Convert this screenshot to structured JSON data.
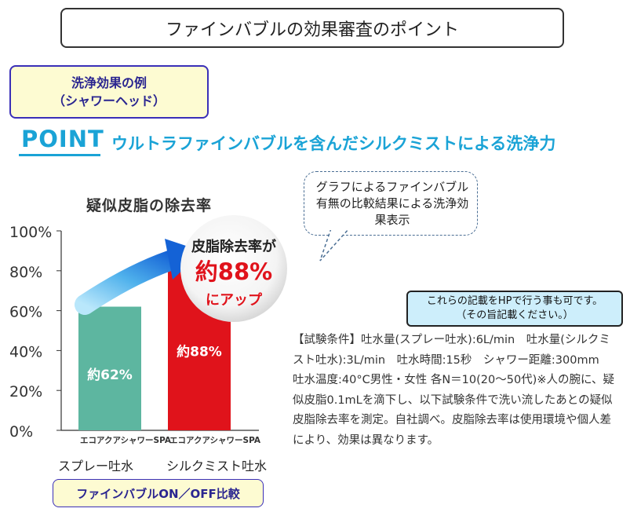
{
  "header": {
    "title": "ファインバブルの効果審査のポイント"
  },
  "example": {
    "line1": "洗浄効果の例",
    "line2": "（シャワーヘッド）"
  },
  "point": {
    "label": "POINT",
    "text": "ウルトラファインバブルを含んだシルクミストによる洗浄力"
  },
  "speech": {
    "text": "グラフによるファインバブル有無の比較結果による洗浄効果表示"
  },
  "note": {
    "line1": "これらの記載をHPで行う事も可です。",
    "line2": "（その旨記載ください。）"
  },
  "conditions": {
    "text": "【試験条件】吐水量(スプレー吐水):6L/min　吐水量(シルクミスト吐水):3L/min　吐水時間:15秒　シャワー距離:300mm　吐水温度:40°C男性・女性 各N＝10(20〜50代)※人の腕に、疑似皮脂0.1mLを滴下し、以下試験条件で洗い流したあとの疑似皮脂除去率を測定。自社調べ。皮脂除去率は使用環境や個人差により、効果は異なります。"
  },
  "bottom_label": "ファインバブルON／OFF比較",
  "callout": {
    "line1": "皮脂除去率が",
    "line2": "約88%",
    "line3": "にアップ"
  },
  "chart_data": {
    "type": "bar",
    "title": "疑似皮脂の除去率",
    "categories": [
      "エコアクアシャワーSPA",
      "エコアクアシャワーSPA"
    ],
    "sublabels": [
      "スプレー吐水",
      "シルクミスト吐水"
    ],
    "values": [
      62,
      88
    ],
    "data_labels": [
      "約62%",
      "約88%"
    ],
    "ylim": [
      0,
      100
    ],
    "yticks": [
      "0%",
      "20%",
      "40%",
      "60%",
      "80%",
      "100%"
    ],
    "colors": [
      "#5db6a0",
      "#e0131b"
    ],
    "grid": false
  }
}
